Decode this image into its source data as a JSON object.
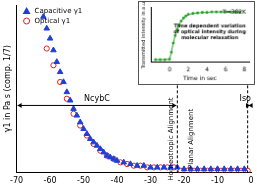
{
  "chart_data": [
    {
      "type": "scatter",
      "y_label": "γ1 in Pa s (comp. 1/7)",
      "xlim": [
        -70,
        0
      ],
      "xticks": [
        -70,
        -60,
        -50,
        -40,
        -30,
        -20,
        -10,
        0
      ],
      "ylim": [
        0,
        1
      ],
      "tick_labels": "x",
      "legend": "upper left",
      "series": [
        {
          "name": "Capacitive γ1",
          "color": "#1f3fd8",
          "marker": "triangle",
          "x": [
            -62,
            -61,
            -60,
            -59,
            -58,
            -57,
            -56,
            -55,
            -54,
            -53,
            -52,
            -51,
            -50,
            -49,
            -48,
            -47,
            -46,
            -45,
            -44,
            -43,
            -42,
            -41,
            -40,
            -38,
            -36,
            -34,
            -32,
            -30,
            -28,
            -26,
            -24,
            -22,
            -20,
            -18,
            -16,
            -14,
            -12,
            -10,
            -8,
            -6,
            -4,
            -2
          ],
          "values": [
            0.93,
            0.86,
            0.8,
            0.73,
            0.66,
            0.6,
            0.54,
            0.48,
            0.43,
            0.38,
            0.34,
            0.3,
            0.26,
            0.23,
            0.2,
            0.18,
            0.16,
            0.14,
            0.12,
            0.1,
            0.09,
            0.08,
            0.07,
            0.06,
            0.05,
            0.04,
            0.04,
            0.03,
            0.03,
            0.03,
            0.03,
            0.03,
            0.02,
            0.02,
            0.02,
            0.02,
            0.02,
            0.02,
            0.02,
            0.02,
            0.02,
            0.02
          ]
        },
        {
          "name": "Optical γ1",
          "color": "#e02020",
          "marker": "open circle",
          "x": [
            -61,
            -59,
            -57,
            -55,
            -53,
            -51,
            -49,
            -47,
            -45,
            -43,
            -41,
            -39,
            -37,
            -35,
            -33,
            -31,
            -29,
            -27,
            -25,
            -23,
            -21,
            -19,
            -17,
            -15,
            -13,
            -11,
            -9,
            -7,
            -5,
            -3,
            -1
          ],
          "values": [
            0.74,
            0.64,
            0.54,
            0.44,
            0.35,
            0.28,
            0.22,
            0.17,
            0.13,
            0.1,
            0.08,
            0.06,
            0.05,
            0.04,
            0.04,
            0.03,
            0.03,
            0.03,
            0.03,
            0.03,
            0.01,
            0.01,
            0.01,
            0.01,
            0.01,
            0.01,
            0.01,
            0.01,
            0.01,
            0.01,
            0.01
          ]
        }
      ],
      "boundaries": [
        -22,
        -1
      ],
      "annotations": [
        "NcybC",
        "Homeotropic Alignment",
        "Planar Alignment",
        "Iso"
      ]
    },
    {
      "type": "line",
      "title": "T=382K",
      "annotation": [
        "Time dependent variation",
        "of optical intensity during",
        "molecular relaxation"
      ],
      "x_label": "Time in sec",
      "y_label": "Transmitted intensity in a.u.",
      "xlim": [
        -2,
        8.5
      ],
      "xticks": [
        0,
        2,
        4,
        6,
        8
      ],
      "ylim": [
        0,
        1.1
      ],
      "tick_labels": "x",
      "color": "#22a022",
      "marker": "square",
      "x": [
        -1.5,
        -1,
        -0.5,
        0,
        0.2,
        0.4,
        0.6,
        0.8,
        1,
        1.25,
        1.5,
        1.75,
        2,
        2.5,
        3,
        3.5,
        4,
        4.5,
        5,
        5.5,
        6,
        6.5,
        7,
        7.5
      ],
      "values": [
        0.05,
        0.05,
        0.05,
        0.06,
        0.2,
        0.38,
        0.53,
        0.65,
        0.74,
        0.82,
        0.88,
        0.92,
        0.95,
        0.97,
        0.98,
        0.99,
        0.99,
        1,
        1,
        1,
        1,
        1,
        1,
        1
      ]
    }
  ]
}
